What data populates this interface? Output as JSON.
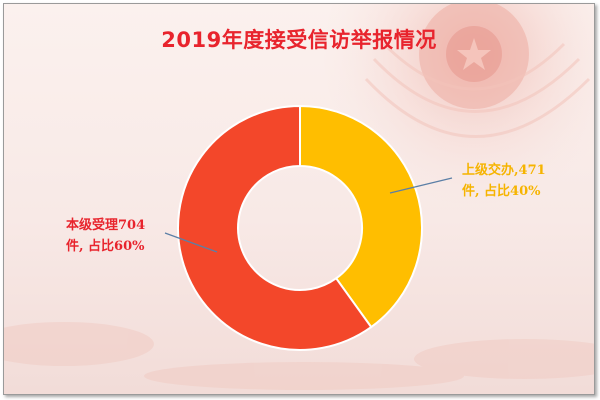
{
  "chart_data": {
    "type": "pie",
    "donut": true,
    "title": "2019年度接受信访举报情况",
    "slices": [
      {
        "label": "上级交办",
        "value": 471,
        "percent": 40,
        "color": "#ffbe00",
        "label_line1": "上级交办,471",
        "label_line2": "件, 占比40%"
      },
      {
        "label": "本级受理",
        "value": 704,
        "percent": 60,
        "color": "#f3472a",
        "label_line1": "本级受理704",
        "label_line2": "件, 占比60%"
      }
    ],
    "legend": "none"
  }
}
